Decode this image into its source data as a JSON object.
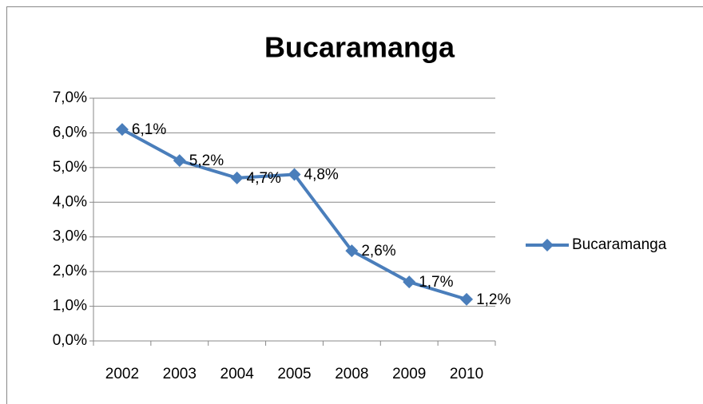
{
  "chart_data": {
    "type": "line",
    "title": "Bucaramanga",
    "categories": [
      "2002",
      "2003",
      "2004",
      "2005",
      "2008",
      "2009",
      "2010"
    ],
    "series": [
      {
        "name": "Bucaramanga",
        "color": "#4a7ebb",
        "values": [
          6.1,
          5.2,
          4.7,
          4.8,
          2.6,
          1.7,
          1.2
        ],
        "value_labels": [
          "6,1%",
          "5,2%",
          "4,7%",
          "4,8%",
          "2,6%",
          "1,7%",
          "1,2%"
        ]
      }
    ],
    "ylim": [
      0,
      7
    ],
    "yticks": [
      {
        "value": 0,
        "label": "0,0%"
      },
      {
        "value": 1,
        "label": "1,0%"
      },
      {
        "value": 2,
        "label": "2,0%"
      },
      {
        "value": 3,
        "label": "3,0%"
      },
      {
        "value": 4,
        "label": "4,0%"
      },
      {
        "value": 5,
        "label": "5,0%"
      },
      {
        "value": 6,
        "label": "6,0%"
      },
      {
        "value": 7,
        "label": "7,0%"
      }
    ],
    "grid": true,
    "legend": "right"
  }
}
